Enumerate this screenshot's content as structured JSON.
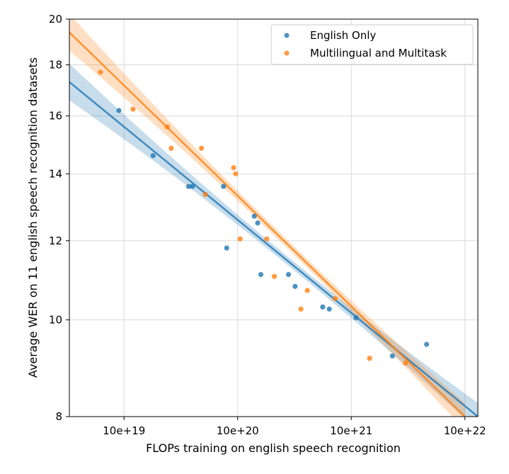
{
  "chart_data": {
    "type": "scatter",
    "xlabel": "FLOPs training on english speech recognition",
    "ylabel": "Average WER on 11 english speech recognition datasets",
    "x_scale": "log",
    "y_scale": "log",
    "xlim": [
      3.3e+18,
      1.3e+22
    ],
    "ylim": [
      8,
      20
    ],
    "x_ticks": [
      1e+19,
      1e+20,
      1e+21,
      1e+22
    ],
    "x_tick_labels": [
      "10e+19",
      "10e+20",
      "10e+21",
      "10e+22"
    ],
    "y_ticks": [
      8,
      10,
      12,
      14,
      16,
      18,
      20
    ],
    "y_tick_labels": [
      "8",
      "10",
      "12",
      "14",
      "16",
      "18",
      "20"
    ],
    "grid": true,
    "legend_position": "top-right",
    "series": [
      {
        "name": "English Only",
        "color": "#1f77b4",
        "points": [
          [
            9e+18,
            16.2
          ],
          [
            1.8e+19,
            14.6
          ],
          [
            3.7e+19,
            13.6
          ],
          [
            4e+19,
            13.6
          ],
          [
            7.5e+19,
            13.6
          ],
          [
            8e+19,
            11.8
          ],
          [
            1.4e+20,
            12.7
          ],
          [
            1.5e+20,
            12.5
          ],
          [
            1.6e+20,
            11.1
          ],
          [
            2.8e+20,
            11.1
          ],
          [
            3.2e+20,
            10.8
          ],
          [
            5.6e+20,
            10.3
          ],
          [
            6.4e+20,
            10.25
          ],
          [
            1.1e+21,
            10.05
          ],
          [
            2.3e+21,
            9.2
          ],
          [
            4.6e+21,
            9.45
          ]
        ],
        "fit": {
          "x": [
            3.3e+18,
            1.3e+22
          ],
          "y": [
            17.3,
            8.0
          ]
        }
      },
      {
        "name": "Multilingual and Multitask",
        "color": "#ff7f0e",
        "points": [
          [
            6.2e+18,
            17.7
          ],
          [
            1.2e+19,
            16.25
          ],
          [
            2.4e+19,
            15.6
          ],
          [
            2.6e+19,
            14.85
          ],
          [
            4.8e+19,
            14.85
          ],
          [
            5.2e+19,
            13.35
          ],
          [
            9.2e+19,
            14.2
          ],
          [
            9.6e+19,
            14.0
          ],
          [
            1.05e+20,
            12.05
          ],
          [
            1.8e+20,
            12.05
          ],
          [
            2.1e+20,
            11.05
          ],
          [
            3.6e+20,
            10.25
          ],
          [
            4.1e+20,
            10.7
          ],
          [
            7.2e+20,
            10.5
          ],
          [
            1.45e+21,
            9.15
          ],
          [
            3e+21,
            9.05
          ]
        ],
        "fit": {
          "x": [
            3.3e+18,
            1e+22
          ],
          "y": [
            19.4,
            8.0
          ]
        }
      }
    ]
  }
}
